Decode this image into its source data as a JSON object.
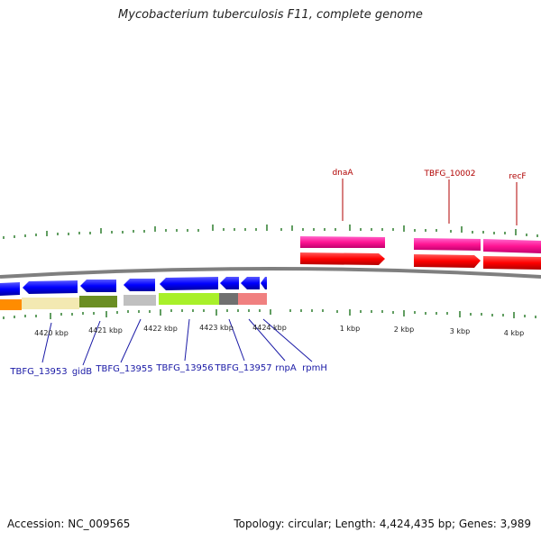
{
  "title": "Mycobacterium tuberculosis F11, complete genome",
  "accession": "Accession: NC_009565",
  "topology": "Topology: circular; Length: 4,424,435 bp; Genes: 3,989",
  "kbp_labels": [
    "4420 kbp",
    "4421 kbp",
    "4422 kbp",
    "4423 kbp",
    "4424 kbp",
    "1 kbp",
    "2 kbp",
    "3 kbp",
    "4 kbp"
  ],
  "genes_left": [
    "TBFG_13953",
    "gidB",
    "TBFG_13955",
    "TBFG_13956",
    "TBFG_13957",
    "rnpA",
    "rpmH"
  ],
  "genes_right": [
    "dnaA",
    "TBFG_10002",
    "recF"
  ],
  "colors": {
    "forward_cds": "#ff0000",
    "forward_gene": "#ff1493",
    "reverse_cds": "#0000ff",
    "tick": "#2e7d2e",
    "backbone": "#808080",
    "label_blue": "#1a1aa6",
    "label_red": "#b00000"
  }
}
